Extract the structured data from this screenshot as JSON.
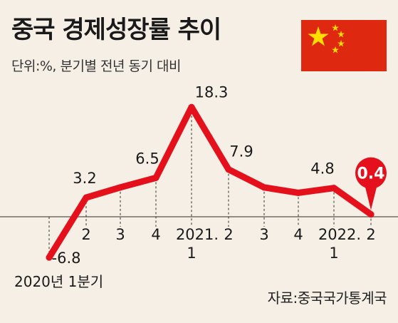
{
  "header": {
    "title": "중국 경제성장률 추이",
    "unit": "단위:%, 분기별 전년 동기 대비"
  },
  "footer": {
    "source": "자료:중국국가통계국"
  },
  "flag": {
    "icon": "china-flag-icon",
    "background_color": "#de2910",
    "star_color": "#ffde00"
  },
  "colors": {
    "line": "#e4111c",
    "highlight": "#e4111c",
    "axis": "#555555"
  },
  "chart_data": {
    "type": "line",
    "title": "중국 경제성장률 추이",
    "ylabel": "단위:%, 분기별 전년 동기 대비",
    "xlabel": "",
    "categories": [
      "2020년 1분기",
      "2",
      "3",
      "4",
      "2021. 1",
      "2",
      "3",
      "4",
      "2022. 1",
      "2"
    ],
    "tick_labels": [
      [
        "2020년 1분기"
      ],
      [
        "2"
      ],
      [
        "3"
      ],
      [
        "4"
      ],
      [
        "2021.",
        "1"
      ],
      [
        "2"
      ],
      [
        "3"
      ],
      [
        "4"
      ],
      [
        "2022.",
        "1"
      ],
      [
        "2"
      ]
    ],
    "values": [
      -6.8,
      3.2,
      4.9,
      6.5,
      18.3,
      7.9,
      4.9,
      4.0,
      4.8,
      0.4
    ],
    "data_labels": [
      "-6.8",
      "3.2",
      "",
      "6.5",
      "18.3",
      "7.9",
      "",
      "",
      "4.8",
      "0.4"
    ],
    "highlight_index": 9,
    "ylim": [
      -8,
      20
    ],
    "grid": "vertical-dashed"
  }
}
